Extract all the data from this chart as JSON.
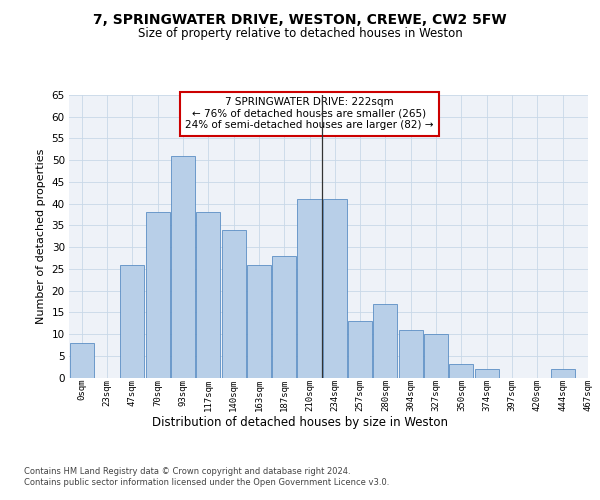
{
  "title_line1": "7, SPRINGWATER DRIVE, WESTON, CREWE, CW2 5FW",
  "title_line2": "Size of property relative to detached houses in Weston",
  "xlabel": "Distribution of detached houses by size in Weston",
  "ylabel": "Number of detached properties",
  "bar_values": [
    8,
    0,
    26,
    38,
    51,
    38,
    34,
    26,
    28,
    41,
    41,
    13,
    17,
    11,
    10,
    3,
    2,
    0,
    0,
    2
  ],
  "bin_labels": [
    "0sqm",
    "23sqm",
    "47sqm",
    "70sqm",
    "93sqm",
    "117sqm",
    "140sqm",
    "163sqm",
    "187sqm",
    "210sqm",
    "234sqm",
    "257sqm",
    "280sqm",
    "304sqm",
    "327sqm",
    "350sqm",
    "374sqm",
    "397sqm",
    "420sqm",
    "444sqm",
    "467sqm"
  ],
  "bar_color": "#b8cfe8",
  "bar_edge_color": "#5b8ec4",
  "grid_color": "#c8d8e8",
  "bg_color": "#eef2f8",
  "vline_x": 9.5,
  "vline_color": "#333333",
  "annotation_text": "7 SPRINGWATER DRIVE: 222sqm\n← 76% of detached houses are smaller (265)\n24% of semi-detached houses are larger (82) →",
  "annotation_box_color": "#ffffff",
  "annotation_box_edge": "#cc0000",
  "footnote": "Contains HM Land Registry data © Crown copyright and database right 2024.\nContains public sector information licensed under the Open Government Licence v3.0.",
  "ylim": [
    0,
    65
  ],
  "yticks": [
    0,
    5,
    10,
    15,
    20,
    25,
    30,
    35,
    40,
    45,
    50,
    55,
    60,
    65
  ],
  "title_fontsize": 10,
  "subtitle_fontsize": 8.5
}
